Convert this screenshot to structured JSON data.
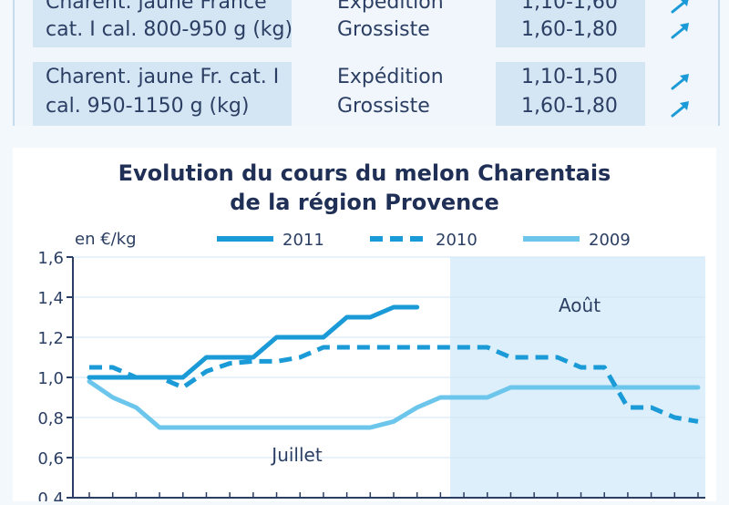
{
  "price_table": {
    "rows": [
      {
        "product": [
          "Charent. jaune France",
          "cat. I cal. 800-950 g (kg)"
        ],
        "stages": [
          "Expédition",
          "Grossiste"
        ],
        "prices": [
          "1,10-1,60",
          "1,60-1,80"
        ],
        "trend_icons": [
          "arrow-up-right-icon",
          "arrow-up-right-icon"
        ]
      },
      {
        "product": [
          "Charent. jaune Fr. cat. I",
          "cal. 950-1150 g (kg)"
        ],
        "stages": [
          "Expédition",
          "Grossiste"
        ],
        "prices": [
          "1,10-1,50",
          "1,60-1,80"
        ],
        "trend_icons": [
          "arrow-up-right-icon",
          "arrow-up-right-icon"
        ]
      }
    ]
  },
  "chart_data": {
    "type": "line",
    "title": [
      "Evolution du cours du melon Charentais",
      "de la région Provence"
    ],
    "ylabel": "en €/kg",
    "ylim": [
      0.4,
      1.6
    ],
    "yticks": [
      "1,6",
      "1,4",
      "1,2",
      "1,0",
      "0,8",
      "0,6",
      "0,4"
    ],
    "x": [
      1,
      2,
      3,
      4,
      5,
      6,
      7,
      8,
      9,
      10,
      11,
      12,
      13,
      14,
      15,
      16,
      17,
      18,
      19,
      20,
      21,
      22,
      23,
      24,
      25,
      26,
      27
    ],
    "annotations": [
      "Juillet",
      "Août"
    ],
    "colors": {
      "2011": "#1a9ad6",
      "2010": "#1a9ad6",
      "2009": "#6cc6ec",
      "aout_shade": "#dceffa",
      "grid": "#cfe6f4"
    },
    "legend_position": "top",
    "series": [
      {
        "name": "2011",
        "style": "solid",
        "values": [
          1.0,
          1.0,
          1.0,
          1.0,
          1.0,
          1.1,
          1.1,
          1.1,
          1.2,
          1.2,
          1.2,
          1.3,
          1.3,
          1.35,
          1.35,
          null,
          null,
          null,
          null,
          null,
          null,
          null,
          null,
          null,
          null,
          null,
          null
        ]
      },
      {
        "name": "2010",
        "style": "dashed",
        "values": [
          1.05,
          1.05,
          1.0,
          1.0,
          0.95,
          1.03,
          1.07,
          1.08,
          1.08,
          1.1,
          1.15,
          1.15,
          1.15,
          1.15,
          1.15,
          1.15,
          1.15,
          1.15,
          1.1,
          1.1,
          1.1,
          1.05,
          1.05,
          0.85,
          0.85,
          0.8,
          0.78
        ]
      },
      {
        "name": "2009",
        "style": "solid",
        "values": [
          0.98,
          0.9,
          0.85,
          0.75,
          0.75,
          0.75,
          0.75,
          0.75,
          0.75,
          0.75,
          0.75,
          0.75,
          0.75,
          0.78,
          0.85,
          0.9,
          0.9,
          0.9,
          0.95,
          0.95,
          0.95,
          0.95,
          0.95,
          0.95,
          0.95,
          0.95,
          0.95
        ]
      }
    ]
  }
}
